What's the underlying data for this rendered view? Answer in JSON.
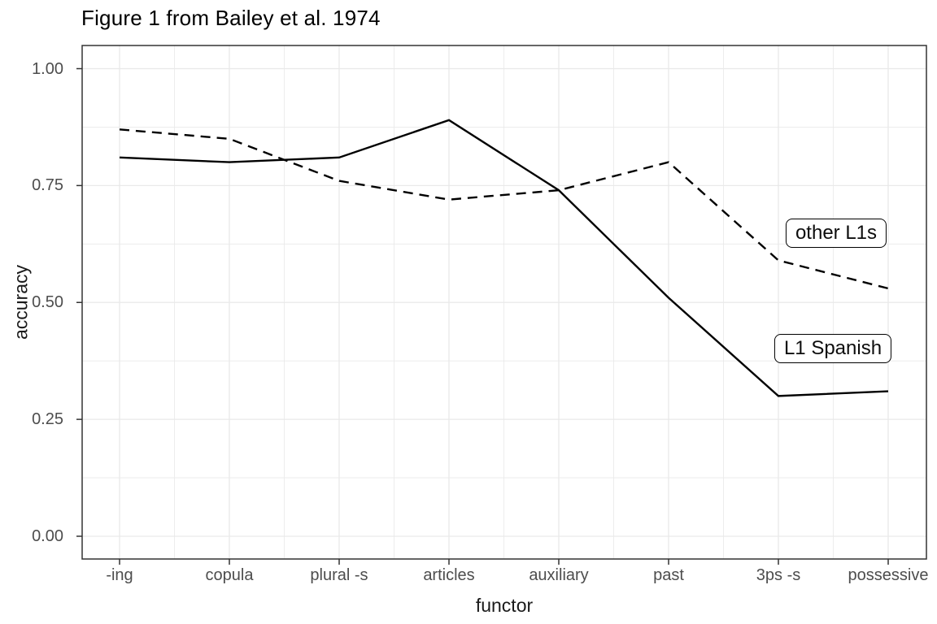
{
  "chart_data": {
    "type": "line",
    "title": "Figure 1 from Bailey et al. 1974",
    "xlabel": "functor",
    "ylabel": "accuracy",
    "categories": [
      "-ing",
      "copula",
      "plural -s",
      "articles",
      "auxiliary",
      "past",
      "3ps -s",
      "possessive"
    ],
    "series": [
      {
        "name": "L1 Spanish",
        "line_style": "solid",
        "color": "#000000",
        "values": [
          0.81,
          0.8,
          0.81,
          0.89,
          0.74,
          0.51,
          0.3,
          0.31
        ]
      },
      {
        "name": "other L1s",
        "line_style": "dashed",
        "color": "#000000",
        "values": [
          0.87,
          0.85,
          0.76,
          0.72,
          0.74,
          0.8,
          0.59,
          0.53
        ]
      }
    ],
    "y_ticks": [
      "0.00",
      "0.25",
      "0.50",
      "0.75",
      "1.00"
    ],
    "y_tick_values": [
      0,
      0.25,
      0.5,
      0.75,
      1.0
    ],
    "y_minor_values": [
      0.125,
      0.375,
      0.625,
      0.875
    ],
    "ylim": [
      -0.05,
      1.05
    ],
    "grid": "major+minor",
    "legend": "direct-labels-on-plot",
    "colors": {
      "line": "#000000",
      "grid": "#e9e9e9",
      "panel_border": "#333333",
      "tick_mark": "#333333",
      "tick_label": "#4d4d4d",
      "background": "#ffffff"
    }
  }
}
